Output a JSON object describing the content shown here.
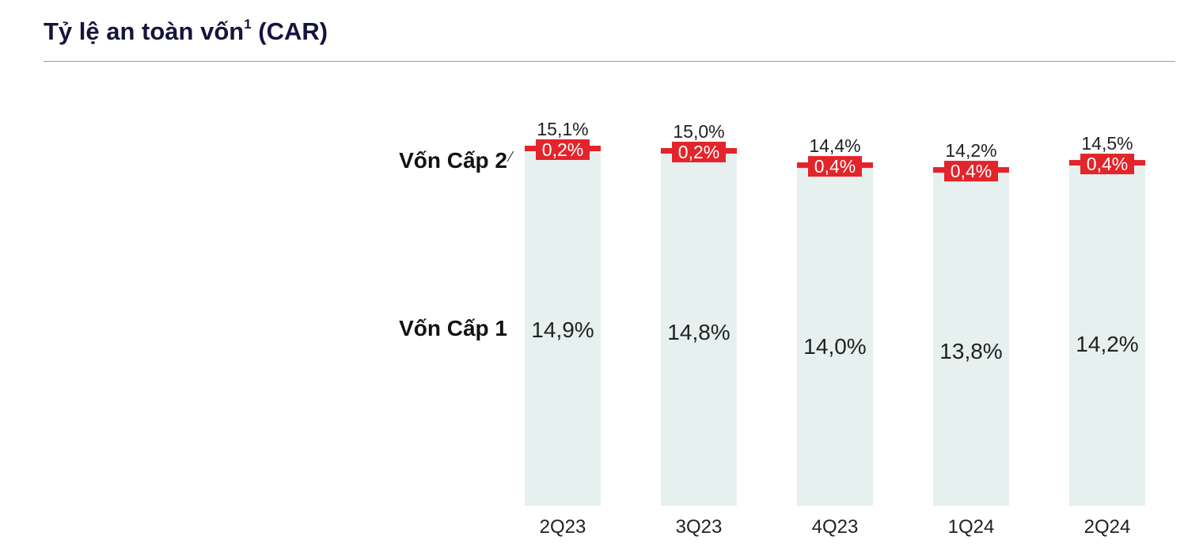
{
  "title": "Tỷ lệ an toàn vốn",
  "title_sup": "1",
  "chart_data": {
    "type": "bar",
    "stacked": true,
    "title": "Tỷ lệ an toàn vốn¹ (CAR)",
    "categories": [
      "2Q23",
      "3Q23",
      "4Q23",
      "1Q24",
      "2Q24"
    ],
    "series": [
      {
        "name": "Vốn Cấp 1",
        "values": [
          14.9,
          14.8,
          14.0,
          13.8,
          14.2
        ],
        "labels": [
          "14,9%",
          "14,8%",
          "14,0%",
          "13,8%",
          "14,2%"
        ],
        "color": "#e6f1ef"
      },
      {
        "name": "Vốn Cấp 2",
        "values": [
          0.2,
          0.2,
          0.4,
          0.4,
          0.4
        ],
        "labels": [
          "0,2%",
          "0,2%",
          "0,4%",
          "0,4%",
          "0,4%"
        ],
        "color": "#e3242b"
      }
    ],
    "totals": [
      15.1,
      15.0,
      14.4,
      14.2,
      14.5
    ],
    "total_labels": [
      "15,1%",
      "15,0%",
      "14,4%",
      "14,2%",
      "14,5%"
    ],
    "tier2_label_suffix": "⁄",
    "ylim": [
      0,
      15.1
    ],
    "grid": false,
    "legend": "left"
  }
}
